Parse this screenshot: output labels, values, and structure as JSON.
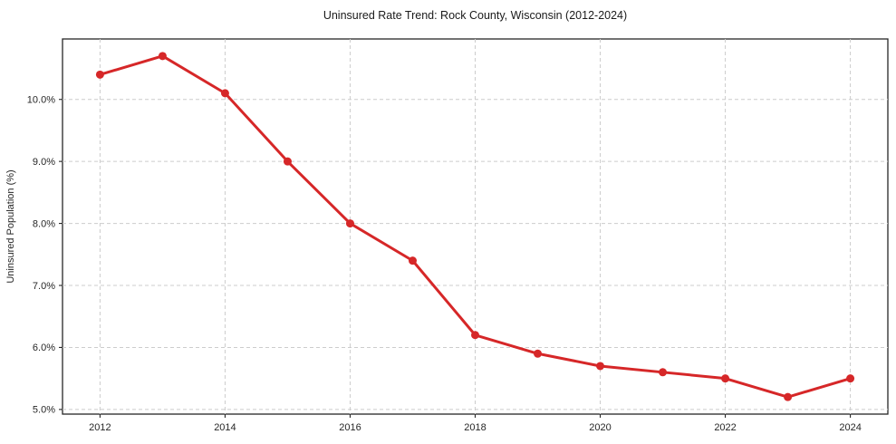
{
  "chart_data": {
    "type": "line",
    "title": "Uninsured Rate Trend: Rock County, Wisconsin (2012-2024)",
    "xlabel": "",
    "ylabel": "Uninsured Population (%)",
    "x": [
      2012,
      2013,
      2014,
      2015,
      2016,
      2017,
      2018,
      2019,
      2020,
      2021,
      2022,
      2023,
      2024
    ],
    "values": [
      10.4,
      10.7,
      10.1,
      9.0,
      8.0,
      7.4,
      6.2,
      5.9,
      5.7,
      5.6,
      5.5,
      5.2,
      5.5
    ],
    "xticks": [
      2012,
      2014,
      2016,
      2018,
      2020,
      2022,
      2024
    ],
    "xtick_labels": [
      "2012",
      "2014",
      "2016",
      "2018",
      "2020",
      "2022",
      "2024"
    ],
    "yticks": [
      5.0,
      6.0,
      7.0,
      8.0,
      9.0,
      10.0
    ],
    "ytick_labels": [
      "5.0%",
      "6.0%",
      "7.0%",
      "8.0%",
      "9.0%",
      "10.0%"
    ],
    "xlim": [
      2011.4,
      2024.6
    ],
    "ylim": [
      4.925,
      10.975
    ],
    "grid": true,
    "grid_linestyle": "dashed",
    "legend": "none",
    "marker": "circle",
    "colors": {
      "line": "#d62728",
      "marker": "#d62728",
      "grid": "#cccccc",
      "axis": "#262626",
      "text": "#262626",
      "background": "#ffffff"
    }
  }
}
